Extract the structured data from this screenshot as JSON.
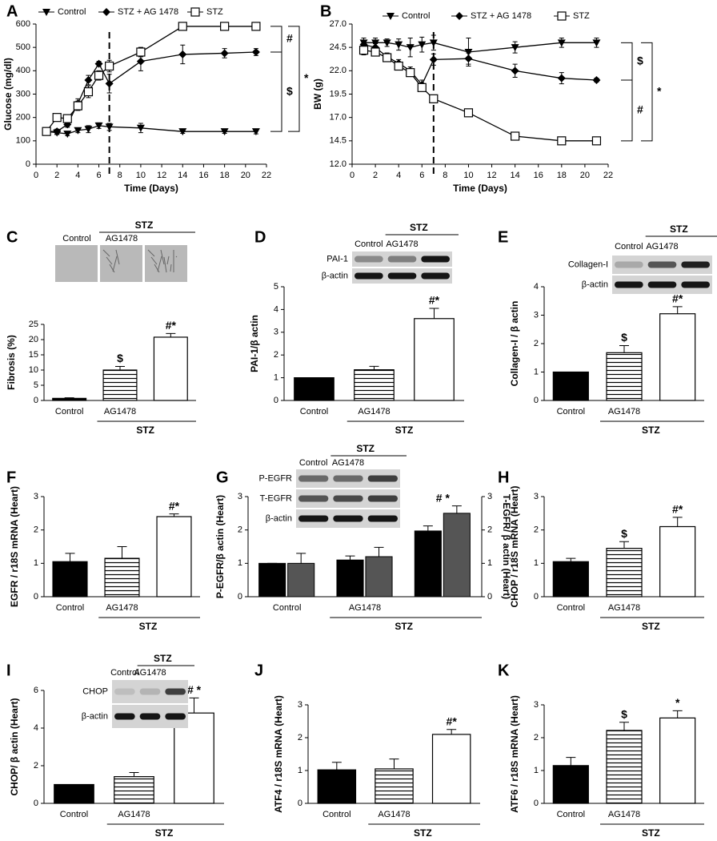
{
  "chart_data": [
    {
      "panel": "A",
      "type": "line",
      "ylabel": "Glucose (mg/dl)",
      "xlabel": "Time (Days)",
      "x": [
        1,
        2,
        3,
        4,
        5,
        6,
        7,
        10,
        14,
        18,
        21
      ],
      "xlim": [
        0,
        22
      ],
      "xticks": [
        0,
        2,
        4,
        6,
        8,
        10,
        12,
        14,
        16,
        18,
        20,
        22
      ],
      "ylim": [
        0,
        600
      ],
      "yticks": [
        0,
        100,
        200,
        300,
        400,
        500,
        600
      ],
      "vline": 7,
      "series": [
        {
          "name": "Control",
          "marker": "triangle-down",
          "color": "#000000",
          "values": [
            140,
            135,
            130,
            145,
            150,
            165,
            160,
            155,
            140,
            140,
            140
          ],
          "errors": [
            8,
            8,
            8,
            10,
            15,
            12,
            15,
            20,
            8,
            8,
            10
          ]
        },
        {
          "name": "STZ + AG 1478",
          "marker": "diamond",
          "color": "#000000",
          "values": [
            140,
            140,
            170,
            260,
            360,
            430,
            345,
            440,
            470,
            475,
            480
          ],
          "errors": [
            10,
            10,
            12,
            20,
            20,
            10,
            40,
            40,
            40,
            20,
            15
          ]
        },
        {
          "name": "STZ",
          "marker": "square-open",
          "color": "#000000",
          "values": [
            140,
            200,
            195,
            250,
            310,
            380,
            420,
            480,
            590,
            590,
            590
          ],
          "errors": [
            15,
            10,
            15,
            20,
            25,
            20,
            25,
            20,
            15,
            10,
            10
          ]
        }
      ],
      "brackets": [
        "#",
        "$",
        "*"
      ]
    },
    {
      "panel": "B",
      "type": "line",
      "ylabel": "BW (g)",
      "xlabel": "Time (Days)",
      "x": [
        1,
        2,
        3,
        4,
        5,
        6,
        7,
        10,
        14,
        18,
        21
      ],
      "xlim": [
        0,
        22
      ],
      "xticks": [
        0,
        2,
        4,
        6,
        8,
        10,
        12,
        14,
        16,
        18,
        20,
        22
      ],
      "ylim": [
        12,
        27
      ],
      "yticks": [
        {
          "value": 12,
          "label": "12.0"
        },
        14.5,
        {
          "value": 17,
          "label": "17.0"
        },
        19.5,
        {
          "value": 22,
          "label": "22.0"
        },
        24.5,
        {
          "value": 27,
          "label": "27.0"
        }
      ],
      "vline": 7,
      "series": [
        {
          "name": "Control",
          "marker": "triangle-down",
          "color": "#000000",
          "values": [
            25,
            25,
            25,
            24.8,
            24.5,
            24.8,
            25,
            24,
            24.5,
            25,
            25
          ],
          "errors": [
            0.5,
            0.5,
            0.4,
            0.6,
            1.0,
            0.8,
            0.8,
            1.5,
            0.6,
            0.5,
            0.5
          ]
        },
        {
          "name": "STZ + AG 1478",
          "marker": "diamond",
          "color": "#000000",
          "values": [
            24.8,
            24.5,
            23.5,
            22.8,
            22,
            20.5,
            23.2,
            23.3,
            22,
            21.2,
            21
          ],
          "errors": [
            0.4,
            0.4,
            0.4,
            0.4,
            0.4,
            0.5,
            0.6,
            0.6,
            0.7,
            0.6,
            0.2
          ]
        },
        {
          "name": "STZ",
          "marker": "square-open",
          "color": "#000000",
          "values": [
            24.2,
            24,
            23.4,
            22.5,
            21.8,
            20.2,
            19,
            17.5,
            15,
            14.5,
            14.5
          ],
          "errors": [
            0.5,
            0.4,
            0.3,
            0.3,
            0.3,
            0.4,
            0.2,
            0.2,
            0.2,
            0.2,
            0.2
          ]
        }
      ],
      "brackets": [
        "$",
        "#",
        "*"
      ]
    },
    {
      "panel": "C",
      "type": "bar",
      "ylabel": "Fibrosis (%)",
      "categories": [
        "Control",
        "AG1478",
        null
      ],
      "group_label": "STZ",
      "values": [
        0.7,
        10,
        20.8
      ],
      "errors": [
        0.2,
        1.2,
        1.2
      ],
      "annotations": [
        null,
        "$",
        "#*"
      ],
      "colors": [
        "#000000",
        "#ffffff",
        "#ffffff"
      ],
      "hatch": [
        false,
        true,
        false
      ],
      "ylim": [
        0,
        25
      ],
      "yticks": [
        0,
        5,
        10,
        15,
        20,
        25
      ],
      "blot": {
        "columns": [
          "Control",
          "AG1478"
        ],
        "group": "STZ"
      }
    },
    {
      "panel": "D",
      "type": "bar",
      "ylabel": "PAI-1/β actin",
      "categories": [
        "Control",
        "AG1478",
        null
      ],
      "group_label": "STZ",
      "values": [
        1,
        1.35,
        3.6
      ],
      "errors": [
        0,
        0.15,
        0.45
      ],
      "annotations": [
        null,
        null,
        "#*"
      ],
      "colors": [
        "#000000",
        "#ffffff",
        "#ffffff"
      ],
      "hatch": [
        false,
        true,
        false
      ],
      "ylim": [
        0,
        5
      ],
      "yticks": [
        0,
        1,
        2,
        3,
        4,
        5
      ],
      "blot": {
        "columns": [
          "Control",
          "AG1478"
        ],
        "group": "STZ",
        "rows": [
          "PAI-1",
          "β-actin"
        ]
      }
    },
    {
      "panel": "E",
      "type": "bar",
      "ylabel": "Collagen-I / β actin",
      "categories": [
        "Control",
        "AG1478",
        null
      ],
      "group_label": "STZ",
      "values": [
        1,
        1.68,
        3.05
      ],
      "errors": [
        0,
        0.25,
        0.25
      ],
      "annotations": [
        null,
        "$",
        "#*"
      ],
      "colors": [
        "#000000",
        "#ffffff",
        "#ffffff"
      ],
      "hatch": [
        false,
        true,
        false
      ],
      "ylim": [
        0,
        4
      ],
      "yticks": [
        0,
        1,
        2,
        3,
        4
      ],
      "blot": {
        "columns": [
          "Control",
          "AG1478"
        ],
        "group": "STZ",
        "rows": [
          "Collagen-I",
          "β-actin"
        ]
      }
    },
    {
      "panel": "F",
      "type": "bar",
      "ylabel": "EGFR / r18S mRNA (Heart)",
      "categories": [
        "Control",
        "AG1478",
        null
      ],
      "group_label": "STZ",
      "values": [
        1.05,
        1.15,
        2.4
      ],
      "errors": [
        0.25,
        0.35,
        0.08
      ],
      "annotations": [
        null,
        null,
        "#*"
      ],
      "colors": [
        "#000000",
        "#ffffff",
        "#ffffff"
      ],
      "hatch": [
        false,
        true,
        false
      ],
      "ylim": [
        0,
        3
      ],
      "yticks": [
        0,
        1,
        2,
        3
      ]
    },
    {
      "panel": "G",
      "type": "bar",
      "ylabel": "P-EGFR/β actin (Heart)",
      "y2label": "T-EGFR/ β actin (Heart)",
      "categories": [
        "Control",
        "AG1478",
        null
      ],
      "group_label": "STZ",
      "series": [
        {
          "color": "#000000",
          "values": [
            1,
            1.1,
            1.97
          ],
          "errors": [
            0,
            0.12,
            0.15
          ]
        },
        {
          "color": "#555555",
          "axis": "y2",
          "values": [
            1,
            1.2,
            2.5
          ],
          "errors": [
            0.3,
            0.28,
            0.22
          ]
        }
      ],
      "annotations": [
        null,
        null,
        "# *"
      ],
      "ylim": [
        0,
        3
      ],
      "yticks": [
        0,
        1,
        2,
        3
      ],
      "y2lim": [
        0,
        3
      ],
      "y2ticks": [
        0,
        1,
        2,
        3
      ],
      "blot": {
        "columns": [
          "Control",
          "AG1478"
        ],
        "group": "STZ",
        "rows": [
          "P-EGFR",
          "T-EGFR",
          "β-actin"
        ]
      }
    },
    {
      "panel": "H",
      "type": "bar",
      "ylabel": "CHOP / r18S mRNA (Heart)",
      "categories": [
        "Control",
        "AG1478",
        null
      ],
      "group_label": "STZ",
      "values": [
        1.05,
        1.45,
        2.1
      ],
      "errors": [
        0.1,
        0.2,
        0.28
      ],
      "annotations": [
        null,
        "$",
        "#*"
      ],
      "colors": [
        "#000000",
        "#ffffff",
        "#ffffff"
      ],
      "hatch": [
        false,
        true,
        false
      ],
      "ylim": [
        0,
        3
      ],
      "yticks": [
        0,
        1,
        2,
        3
      ]
    },
    {
      "panel": "I",
      "type": "bar",
      "ylabel": "CHOP/ β actin (Heart)",
      "categories": [
        "Control",
        "AG1478",
        null
      ],
      "group_label": "STZ",
      "values": [
        1,
        1.42,
        4.8
      ],
      "errors": [
        0,
        0.22,
        0.8
      ],
      "annotations": [
        null,
        null,
        "# *"
      ],
      "colors": [
        "#000000",
        "#ffffff",
        "#ffffff"
      ],
      "hatch": [
        false,
        true,
        false
      ],
      "ylim": [
        0,
        6
      ],
      "yticks": [
        0,
        2,
        4,
        6
      ],
      "blot": {
        "columns": [
          "Control",
          "AG1478"
        ],
        "group": "STZ",
        "rows": [
          "CHOP",
          "β-actin"
        ]
      }
    },
    {
      "panel": "J",
      "type": "bar",
      "ylabel": "ATF4 / r18S mRNA (Heart)",
      "categories": [
        "Control",
        "AG1478",
        null
      ],
      "group_label": "STZ",
      "values": [
        1.02,
        1.05,
        2.1
      ],
      "errors": [
        0.23,
        0.3,
        0.15
      ],
      "annotations": [
        null,
        null,
        "#*"
      ],
      "colors": [
        "#000000",
        "#ffffff",
        "#ffffff"
      ],
      "hatch": [
        false,
        true,
        false
      ],
      "ylim": [
        0,
        3
      ],
      "yticks": [
        0,
        1,
        2,
        3
      ]
    },
    {
      "panel": "K",
      "type": "bar",
      "ylabel": "ATF6 / r18S mRNA (Heart)",
      "categories": [
        "Control",
        "AG1478",
        null
      ],
      "group_label": "STZ",
      "values": [
        1.15,
        2.22,
        2.6
      ],
      "errors": [
        0.25,
        0.25,
        0.22
      ],
      "annotations": [
        null,
        "$",
        "*"
      ],
      "colors": [
        "#000000",
        "#ffffff",
        "#ffffff"
      ],
      "hatch": [
        false,
        true,
        false
      ],
      "ylim": [
        0,
        3
      ],
      "yticks": [
        0,
        1,
        2,
        3
      ]
    }
  ]
}
